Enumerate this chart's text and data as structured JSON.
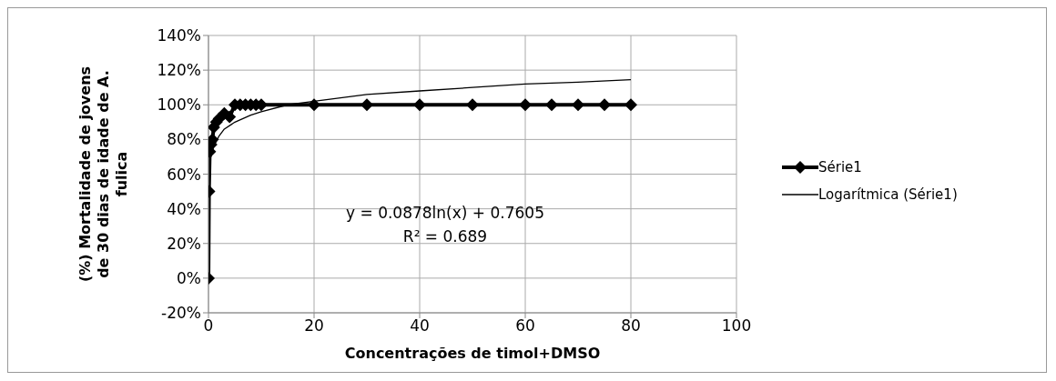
{
  "chart_data": {
    "type": "line",
    "xlabel": "Concentrações de timol+DMSO",
    "ylabel": "(%) Mortalidade de jovens de 30 dias de idade de A. fulica",
    "xlim": [
      0,
      100
    ],
    "xticks": [
      0,
      20,
      40,
      60,
      80,
      100
    ],
    "ylim": [
      -20,
      140
    ],
    "yticks": [
      {
        "value": -20,
        "label": "-20%"
      },
      {
        "value": 0,
        "label": "0%"
      },
      {
        "value": 20,
        "label": "20%"
      },
      {
        "value": 40,
        "label": "40%"
      },
      {
        "value": 60,
        "label": "60%"
      },
      {
        "value": 80,
        "label": "80%"
      },
      {
        "value": 100,
        "label": "100%"
      },
      {
        "value": 120,
        "label": "120%"
      },
      {
        "value": 140,
        "label": "140%"
      }
    ],
    "grid": true,
    "legend": "right",
    "annotations": [
      "y = 0.0878ln(x) + 0.7605",
      "R² = 0.689"
    ],
    "series": [
      {
        "name": "Série1",
        "color": "#000000",
        "marker": "diamond",
        "line_style": "solid",
        "x": [
          0,
          0.1,
          0.25,
          0.5,
          0.75,
          1,
          1.5,
          2,
          3,
          4,
          5,
          6,
          7,
          8,
          9,
          10,
          20,
          30,
          40,
          50,
          60,
          65,
          70,
          75,
          80
        ],
        "values": [
          0,
          50,
          73,
          77,
          80,
          87,
          90,
          92,
          95,
          93,
          100,
          100,
          100,
          100,
          100,
          100,
          100,
          100,
          100,
          100,
          100,
          100,
          100,
          100,
          100
        ]
      },
      {
        "name": "Logarítmica (Série1)",
        "type": "line",
        "color": "#000000",
        "marker": "none",
        "line_style": "solid",
        "x": [
          0.5,
          1,
          2,
          3,
          5,
          8,
          10,
          15,
          20,
          30,
          40,
          50,
          60,
          70,
          80
        ],
        "values": [
          70,
          76,
          82,
          86,
          90,
          94,
          96,
          100,
          102,
          106,
          108,
          110,
          112,
          113,
          114.5
        ]
      }
    ]
  }
}
